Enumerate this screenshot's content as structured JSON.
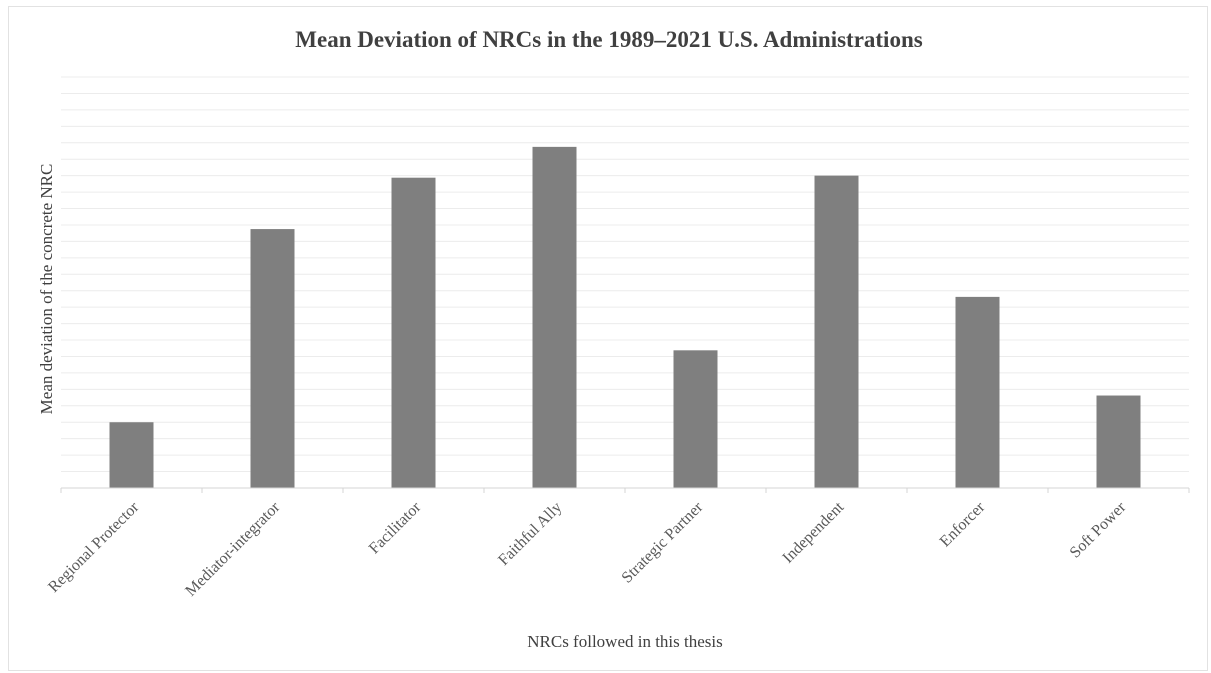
{
  "chart_data": {
    "type": "bar",
    "title": "Mean Deviation of NRCs in the 1989–2021 U.S. Administrations",
    "xlabel": "NRCs followed in this thesis",
    "ylabel": "Mean deviation of the concrete NRC",
    "categories": [
      "Regional Protector",
      "Mediator-integrator",
      "Facilitator",
      "Faithful Ally",
      "Strategic Partner",
      "Independent",
      "Enforcer",
      "Soft Power"
    ],
    "values": [
      0.16,
      0.63,
      0.755,
      0.83,
      0.335,
      0.76,
      0.465,
      0.225
    ],
    "ylim": [
      0,
      1
    ],
    "grid": true,
    "legend": "none",
    "colors": {
      "bar": "#7f7f7f",
      "grid": "#ececec",
      "axis": "#d4d4d4",
      "text": "#404040"
    }
  }
}
